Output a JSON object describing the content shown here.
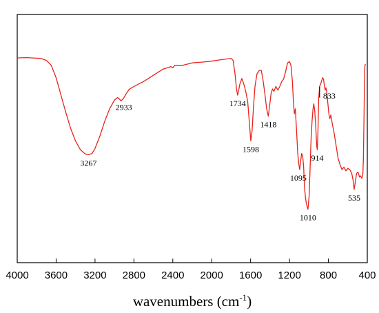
{
  "chart_data": {
    "type": "line",
    "xlabel": "wavenumbers (cm",
    "xlabel_superscript": "-1",
    "xlabel_suffix": ")",
    "xlim": [
      4000,
      400
    ],
    "x_reversed": true,
    "x_ticks": [
      4000,
      3600,
      3200,
      2800,
      2400,
      2000,
      1600,
      1200,
      800,
      400
    ],
    "ylim": [
      0,
      100
    ],
    "y_ticks_shown": false,
    "grid": false,
    "series": [
      {
        "color": "#e8221b",
        "points": [
          [
            4000,
            82.5
          ],
          [
            3900,
            82.6
          ],
          [
            3800,
            82.4
          ],
          [
            3750,
            82.2
          ],
          [
            3700,
            81.5
          ],
          [
            3650,
            79.5
          ],
          [
            3600,
            74.5
          ],
          [
            3550,
            67.5
          ],
          [
            3500,
            60.5
          ],
          [
            3450,
            54
          ],
          [
            3400,
            49
          ],
          [
            3350,
            45.5
          ],
          [
            3300,
            43.8
          ],
          [
            3267,
            43.5
          ],
          [
            3230,
            44
          ],
          [
            3200,
            46
          ],
          [
            3150,
            51
          ],
          [
            3100,
            57
          ],
          [
            3050,
            62
          ],
          [
            3000,
            65.5
          ],
          [
            2970,
            66.5
          ],
          [
            2950,
            66
          ],
          [
            2933,
            65.2
          ],
          [
            2910,
            66
          ],
          [
            2880,
            68
          ],
          [
            2850,
            69.8
          ],
          [
            2800,
            71
          ],
          [
            2700,
            73
          ],
          [
            2600,
            75.5
          ],
          [
            2500,
            78
          ],
          [
            2420,
            79
          ],
          [
            2400,
            78.5
          ],
          [
            2380,
            79.5
          ],
          [
            2300,
            79.5
          ],
          [
            2200,
            80.5
          ],
          [
            2100,
            80.8
          ],
          [
            2000,
            81.2
          ],
          [
            1900,
            81.8
          ],
          [
            1800,
            82.3
          ],
          [
            1780,
            81.5
          ],
          [
            1760,
            76
          ],
          [
            1745,
            70
          ],
          [
            1734,
            67.5
          ],
          [
            1725,
            69
          ],
          [
            1710,
            72
          ],
          [
            1690,
            74.2
          ],
          [
            1670,
            72
          ],
          [
            1650,
            69
          ],
          [
            1630,
            65
          ],
          [
            1612,
            56
          ],
          [
            1598,
            49
          ],
          [
            1585,
            53
          ],
          [
            1570,
            63
          ],
          [
            1555,
            71
          ],
          [
            1535,
            76
          ],
          [
            1510,
            77.5
          ],
          [
            1490,
            77.5
          ],
          [
            1470,
            73
          ],
          [
            1450,
            67
          ],
          [
            1435,
            62
          ],
          [
            1418,
            59
          ],
          [
            1405,
            63
          ],
          [
            1390,
            68
          ],
          [
            1375,
            70
          ],
          [
            1360,
            69
          ],
          [
            1340,
            71
          ],
          [
            1320,
            69.5
          ],
          [
            1300,
            71
          ],
          [
            1280,
            73
          ],
          [
            1260,
            74
          ],
          [
            1240,
            77
          ],
          [
            1220,
            80.5
          ],
          [
            1200,
            81
          ],
          [
            1185,
            79.5
          ],
          [
            1170,
            73
          ],
          [
            1160,
            65
          ],
          [
            1150,
            60
          ],
          [
            1140,
            62
          ],
          [
            1130,
            55
          ],
          [
            1115,
            44
          ],
          [
            1105,
            40
          ],
          [
            1095,
            37.5
          ],
          [
            1085,
            41
          ],
          [
            1075,
            44
          ],
          [
            1065,
            43
          ],
          [
            1055,
            39
          ],
          [
            1045,
            30
          ],
          [
            1035,
            26
          ],
          [
            1025,
            23.5
          ],
          [
            1010,
            21.5
          ],
          [
            998,
            27
          ],
          [
            988,
            38
          ],
          [
            978,
            50
          ],
          [
            968,
            57
          ],
          [
            958,
            62
          ],
          [
            950,
            64
          ],
          [
            940,
            61
          ],
          [
            930,
            55
          ],
          [
            920,
            47
          ],
          [
            914,
            45.5
          ],
          [
            908,
            52
          ],
          [
            900,
            66
          ],
          [
            890,
            71
          ],
          [
            875,
            72.5
          ],
          [
            860,
            74.5
          ],
          [
            850,
            74
          ],
          [
            840,
            71
          ],
          [
            833,
            69.5
          ],
          [
            825,
            70.5
          ],
          [
            815,
            68
          ],
          [
            805,
            64
          ],
          [
            795,
            60
          ],
          [
            785,
            58
          ],
          [
            775,
            59.5
          ],
          [
            760,
            56
          ],
          [
            740,
            52
          ],
          [
            720,
            47
          ],
          [
            700,
            42
          ],
          [
            680,
            39.5
          ],
          [
            660,
            37.5
          ],
          [
            640,
            38.5
          ],
          [
            620,
            37
          ],
          [
            600,
            38
          ],
          [
            580,
            37.5
          ],
          [
            560,
            36
          ],
          [
            545,
            33
          ],
          [
            535,
            29.5
          ],
          [
            525,
            32
          ],
          [
            510,
            36
          ],
          [
            495,
            36.5
          ],
          [
            480,
            34.5
          ],
          [
            470,
            35
          ],
          [
            455,
            34
          ],
          [
            445,
            36
          ],
          [
            440,
            42
          ],
          [
            435,
            55
          ],
          [
            430,
            70
          ],
          [
            425,
            79
          ],
          [
            420,
            80
          ]
        ]
      }
    ],
    "annotations": [
      {
        "label": "3267",
        "x": 3267,
        "y": 43.5
      },
      {
        "label": "2933",
        "x": 2933,
        "y": 65.2
      },
      {
        "label": "1734",
        "x": 1734,
        "y": 67.5
      },
      {
        "label": "1598",
        "x": 1598,
        "y": 49
      },
      {
        "label": "1418",
        "x": 1418,
        "y": 59
      },
      {
        "label": "1095",
        "x": 1095,
        "y": 37.5
      },
      {
        "label": "1010",
        "x": 1010,
        "y": 21.5
      },
      {
        "label": "914",
        "x": 914,
        "y": 45.5
      },
      {
        "label": "833",
        "x": 833,
        "y": 69.5
      },
      {
        "label": "535",
        "x": 535,
        "y": 29.5
      }
    ]
  }
}
